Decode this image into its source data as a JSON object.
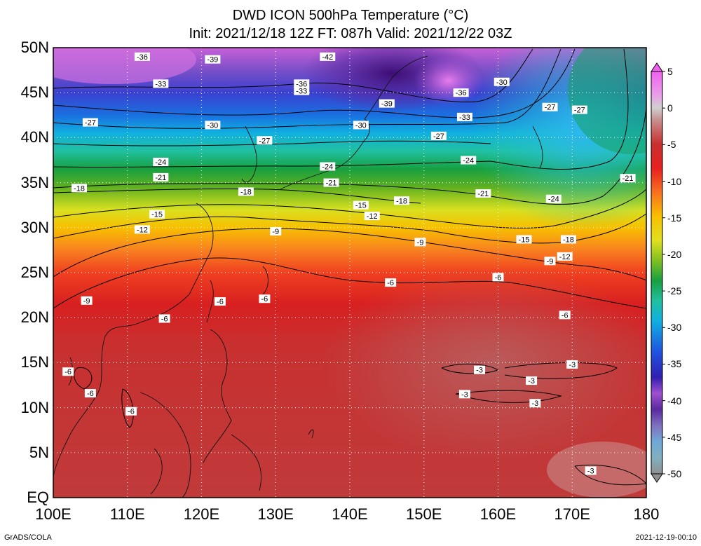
{
  "title": {
    "line1": "DWD ICON 500hPa Temperature (°C)",
    "line2": "Init: 2021/12/18 12Z  FT: 087h  Valid: 2021/12/22 03Z"
  },
  "axes": {
    "lat_labels": [
      "50N",
      "45N",
      "40N",
      "35N",
      "30N",
      "25N",
      "20N",
      "15N",
      "10N",
      "5N",
      "EQ"
    ],
    "lat_values": [
      50,
      45,
      40,
      35,
      30,
      25,
      20,
      15,
      10,
      5,
      0
    ],
    "lon_labels": [
      "100E",
      "110E",
      "120E",
      "130E",
      "140E",
      "150E",
      "160E",
      "170E",
      "180"
    ],
    "lon_values": [
      100,
      110,
      120,
      130,
      140,
      150,
      160,
      170,
      180
    ],
    "lat_range": [
      0,
      50
    ],
    "lon_range": [
      100,
      180
    ],
    "grid": "dotted"
  },
  "colorbar": {
    "labels": [
      "5",
      "0",
      "-5",
      "-10",
      "-15",
      "-20",
      "-25",
      "-30",
      "-35",
      "-40",
      "-45",
      "-50"
    ],
    "values": [
      5,
      0,
      -5,
      -10,
      -15,
      -20,
      -25,
      -30,
      -35,
      -40,
      -45,
      -50
    ]
  },
  "contour_labels": [
    {
      "text": "-36",
      "lon": 112.0,
      "lat": 49.0
    },
    {
      "text": "-39",
      "lon": 121.5,
      "lat": 48.7
    },
    {
      "text": "-42",
      "lon": 137.0,
      "lat": 49.0
    },
    {
      "text": "-33",
      "lon": 114.5,
      "lat": 46.0
    },
    {
      "text": "-36",
      "lon": 133.5,
      "lat": 46.0
    },
    {
      "text": "-33",
      "lon": 133.5,
      "lat": 45.2
    },
    {
      "text": "-39",
      "lon": 145.0,
      "lat": 43.8
    },
    {
      "text": "-36",
      "lon": 155.0,
      "lat": 45.0
    },
    {
      "text": "-30",
      "lon": 160.5,
      "lat": 46.2
    },
    {
      "text": "-27",
      "lon": 105.0,
      "lat": 41.7
    },
    {
      "text": "-30",
      "lon": 121.5,
      "lat": 41.4
    },
    {
      "text": "-30",
      "lon": 141.5,
      "lat": 41.4
    },
    {
      "text": "-33",
      "lon": 155.5,
      "lat": 42.3
    },
    {
      "text": "-27",
      "lon": 167.0,
      "lat": 43.4
    },
    {
      "text": "-27",
      "lon": 171.0,
      "lat": 43.1
    },
    {
      "text": "-27",
      "lon": 128.5,
      "lat": 39.7
    },
    {
      "text": "-27",
      "lon": 152.0,
      "lat": 40.2
    },
    {
      "text": "-24",
      "lon": 114.5,
      "lat": 37.3
    },
    {
      "text": "-24",
      "lon": 137.0,
      "lat": 36.8
    },
    {
      "text": "-24",
      "lon": 156.0,
      "lat": 37.5
    },
    {
      "text": "-21",
      "lon": 114.5,
      "lat": 35.6
    },
    {
      "text": "-21",
      "lon": 137.5,
      "lat": 35.0
    },
    {
      "text": "-21",
      "lon": 177.5,
      "lat": 35.5
    },
    {
      "text": "-18",
      "lon": 103.5,
      "lat": 34.4
    },
    {
      "text": "-18",
      "lon": 126.0,
      "lat": 34.0
    },
    {
      "text": "-21",
      "lon": 158.0,
      "lat": 33.8
    },
    {
      "text": "-24",
      "lon": 167.5,
      "lat": 33.2
    },
    {
      "text": "-15",
      "lon": 114.0,
      "lat": 31.5
    },
    {
      "text": "-15",
      "lon": 141.5,
      "lat": 32.5
    },
    {
      "text": "-18",
      "lon": 147.0,
      "lat": 33.0
    },
    {
      "text": "-12",
      "lon": 112.0,
      "lat": 29.8
    },
    {
      "text": "-12",
      "lon": 143.0,
      "lat": 31.3
    },
    {
      "text": "-9",
      "lon": 130.0,
      "lat": 29.6
    },
    {
      "text": "-9",
      "lon": 149.5,
      "lat": 28.4
    },
    {
      "text": "-15",
      "lon": 163.5,
      "lat": 28.7
    },
    {
      "text": "-18",
      "lon": 169.5,
      "lat": 28.7
    },
    {
      "text": "-12",
      "lon": 169.0,
      "lat": 26.8
    },
    {
      "text": "-9",
      "lon": 167.0,
      "lat": 26.3
    },
    {
      "text": "-6",
      "lon": 160.0,
      "lat": 24.5
    },
    {
      "text": "-6",
      "lon": 145.5,
      "lat": 23.9
    },
    {
      "text": "-9",
      "lon": 104.5,
      "lat": 21.9
    },
    {
      "text": "-6",
      "lon": 122.5,
      "lat": 21.8
    },
    {
      "text": "-6",
      "lon": 128.5,
      "lat": 22.1
    },
    {
      "text": "-6",
      "lon": 115.0,
      "lat": 19.9
    },
    {
      "text": "-6",
      "lon": 169.0,
      "lat": 20.3
    },
    {
      "text": "-6",
      "lon": 102.0,
      "lat": 14.0
    },
    {
      "text": "-6",
      "lon": 105.0,
      "lat": 11.6
    },
    {
      "text": "-6",
      "lon": 110.5,
      "lat": 9.6
    },
    {
      "text": "-3",
      "lon": 157.5,
      "lat": 14.2
    },
    {
      "text": "-3",
      "lon": 170.0,
      "lat": 14.8
    },
    {
      "text": "-3",
      "lon": 164.5,
      "lat": 13.0
    },
    {
      "text": "-3",
      "lon": 155.5,
      "lat": 11.5
    },
    {
      "text": "-3",
      "lon": 165.0,
      "lat": 10.5
    },
    {
      "text": "-3",
      "lon": 172.5,
      "lat": 3.0
    }
  ],
  "footer": {
    "left": "GrADS/COLA",
    "right": "2021-12-19-00:10"
  }
}
